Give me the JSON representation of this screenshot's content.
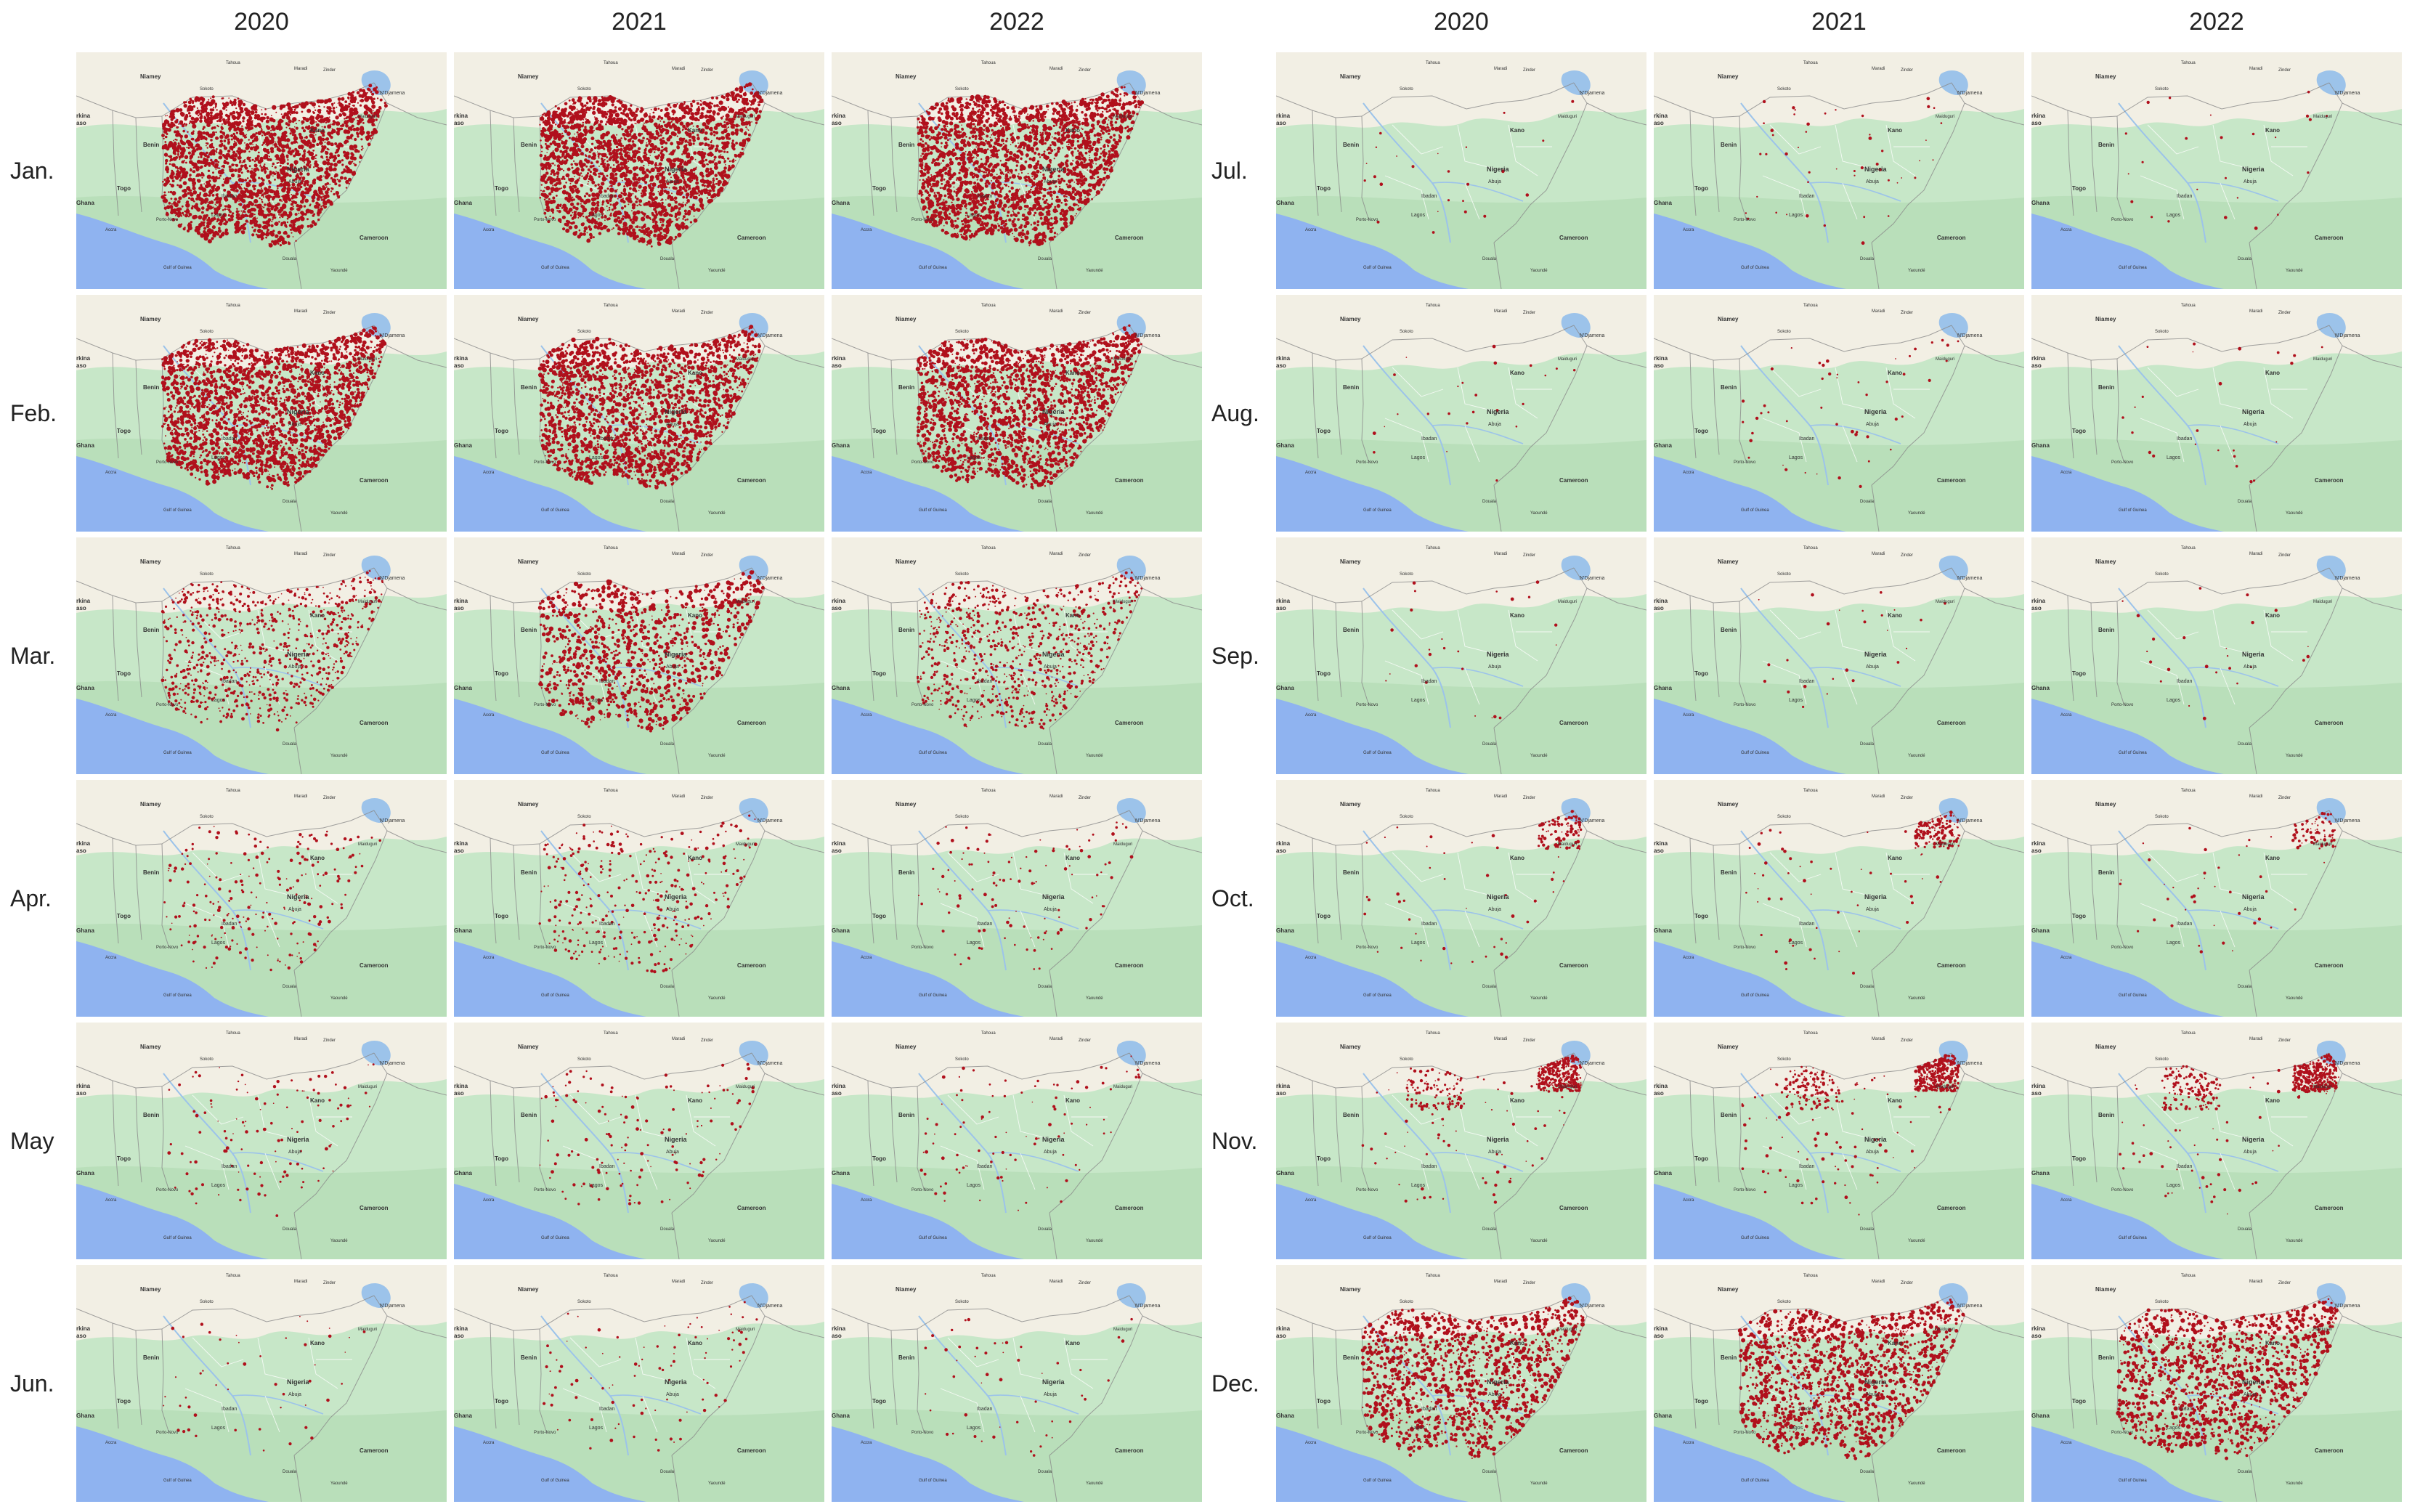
{
  "years": [
    "2020",
    "2021",
    "2022"
  ],
  "months_left": [
    "Jan.",
    "Feb.",
    "Mar.",
    "Apr.",
    "May",
    "Jun."
  ],
  "months_right": [
    "Jul.",
    "Aug.",
    "Sep.",
    "Oct.",
    "Nov.",
    "Dec."
  ],
  "map_labels": {
    "niamey": "Niamey",
    "benin": "Benin",
    "togo": "Togo",
    "ghana": "Ghana",
    "burkina": "rkina",
    "burkina2": "aso",
    "nigeria": "Nigeria",
    "kano": "Kano",
    "ndjamena": "N'Djamena",
    "cameroon": "Cameroon",
    "lagos": "Lagos",
    "abuja": "Abuja",
    "ibadan": "Ibadan",
    "gulf": "Gulf of Guinea",
    "douala": "Douala",
    "yaounde": "Yaoundé",
    "porto_novo": "Porto-Novo",
    "zinder": "Zinder",
    "maradi": "Maradi",
    "tahoua": "Tahoua",
    "maiduguri": "Maiduguri",
    "accra": "Accra",
    "sokoto": "Sokoto"
  },
  "colors": {
    "fire": "#b0101c",
    "land": "#c7e7c8",
    "sahel": "#f2efe4",
    "water": "#8fb3f0",
    "lake": "#9cc3ea",
    "border": "#8a8a8a"
  },
  "fire_intensity": {
    "Jan.": [
      1.0,
      1.0,
      1.0
    ],
    "Feb.": [
      0.95,
      0.85,
      0.85
    ],
    "Mar.": [
      0.35,
      0.45,
      0.35
    ],
    "Apr.": [
      0.1,
      0.15,
      0.05
    ],
    "May": [
      0.05,
      0.06,
      0.04
    ],
    "Jun.": [
      0.02,
      0.04,
      0.02
    ],
    "Jul.": [
      0.01,
      0.02,
      0.01
    ],
    "Aug.": [
      0.01,
      0.02,
      0.01
    ],
    "Sep.": [
      0.01,
      0.01,
      0.01
    ],
    "Oct.": [
      0.06,
      0.08,
      0.05
    ],
    "Nov.": [
      0.2,
      0.22,
      0.22
    ],
    "Dec.": [
      0.55,
      0.6,
      0.55
    ]
  }
}
